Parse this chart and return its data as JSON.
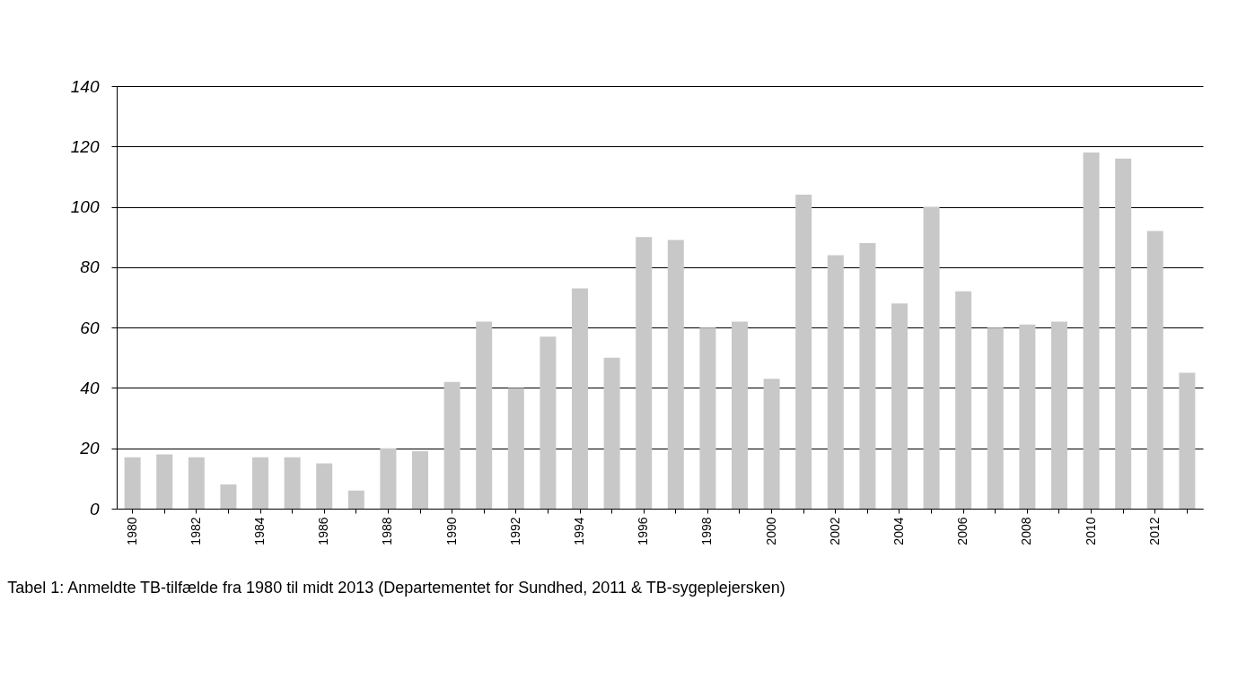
{
  "chart_data": {
    "type": "bar",
    "categories": [
      "1980",
      null,
      "1982",
      null,
      "1984",
      null,
      "1986",
      null,
      "1988",
      null,
      "1990",
      null,
      "1992",
      null,
      "1994",
      null,
      "1996",
      null,
      "1998",
      null,
      "2000",
      null,
      "2002",
      null,
      "2004",
      null,
      "2006",
      null,
      "2008",
      null,
      "2010",
      null,
      "2012",
      null
    ],
    "values": [
      17,
      18,
      17,
      8,
      17,
      17,
      15,
      6,
      20,
      19,
      42,
      62,
      40,
      57,
      73,
      50,
      90,
      89,
      60,
      62,
      43,
      104,
      84,
      88,
      68,
      100,
      72,
      60,
      61,
      62,
      118,
      116,
      92,
      45
    ],
    "color": "#c8c8c8",
    "ylim": [
      0,
      140
    ],
    "yticks": [
      0,
      20,
      40,
      60,
      80,
      100,
      120,
      140
    ],
    "grid": "y",
    "annotations": [
      "Tabel 1: Anmeldte TB-tilfælde fra 1980 til midt 2013 (Departementet for Sundhed, 2011 & TB-sygeplejersken)"
    ]
  }
}
